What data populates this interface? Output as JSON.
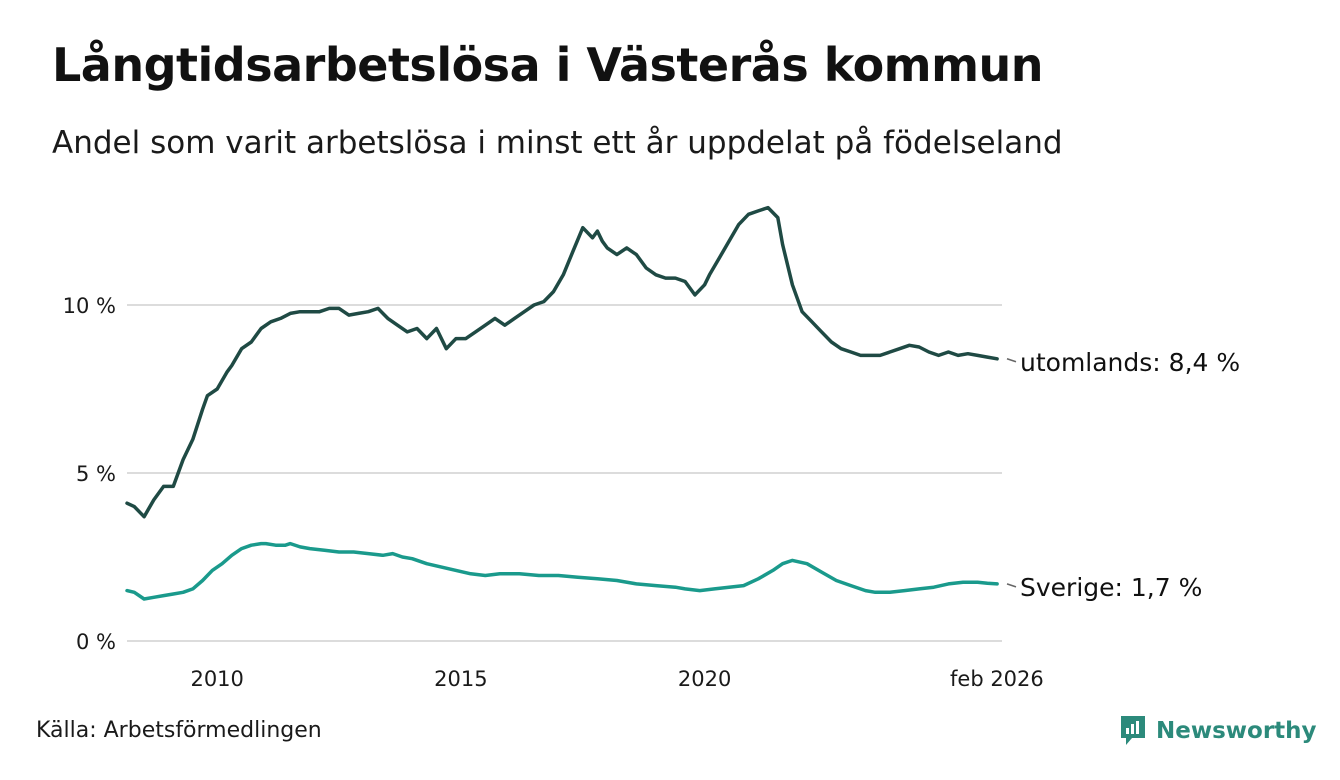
{
  "header": {
    "title": "Långtidsarbetslösa i Västerås kommun",
    "subtitle": "Andel som varit arbetslösa i minst ett år uppdelat på födelseland"
  },
  "footer": {
    "source": "Källa: Arbetsförmedlingen",
    "brand": "Newsworthy"
  },
  "colors": {
    "utomlands": "#1f4a44",
    "sverige": "#1a9a8c",
    "grid": "#dcdcdc",
    "brand": "#2c8a7b"
  },
  "chart_data": {
    "type": "line",
    "title": "Långtidsarbetslösa i Västerås kommun",
    "xlabel": "",
    "ylabel": "",
    "xlim": [
      2008.15,
      2026.1
    ],
    "ylim": [
      0,
      13
    ],
    "yticks": [
      {
        "value": 0,
        "label": "0 %"
      },
      {
        "value": 5,
        "label": "5 %"
      },
      {
        "value": 10,
        "label": "10 %"
      }
    ],
    "xticks": [
      {
        "value": 2010,
        "label": "2010"
      },
      {
        "value": 2015,
        "label": "2015"
      },
      {
        "value": 2020,
        "label": "2020"
      },
      {
        "value": 2025.5,
        "label": "feb 2026"
      }
    ],
    "grid": true,
    "series": [
      {
        "name": "utomlands",
        "label": "utomlands: 8,4 %",
        "x": [
          2008.15,
          2008.3,
          2008.5,
          2008.7,
          2008.9,
          2009.1,
          2009.3,
          2009.5,
          2009.7,
          2009.8,
          2010.0,
          2010.2,
          2010.3,
          2010.5,
          2010.7,
          2010.9,
          2011.1,
          2011.3,
          2011.5,
          2011.7,
          2011.9,
          2012.1,
          2012.3,
          2012.5,
          2012.7,
          2012.9,
          2013.1,
          2013.3,
          2013.5,
          2013.7,
          2013.9,
          2014.1,
          2014.3,
          2014.5,
          2014.7,
          2014.9,
          2015.1,
          2015.3,
          2015.5,
          2015.7,
          2015.9,
          2016.1,
          2016.3,
          2016.5,
          2016.7,
          2016.9,
          2017.1,
          2017.3,
          2017.5,
          2017.7,
          2017.8,
          2017.9,
          2018.0,
          2018.2,
          2018.4,
          2018.6,
          2018.8,
          2019.0,
          2019.2,
          2019.4,
          2019.6,
          2019.8,
          2020.0,
          2020.1,
          2020.3,
          2020.5,
          2020.7,
          2020.9,
          2021.1,
          2021.3,
          2021.5,
          2021.6,
          2021.8,
          2022.0,
          2022.2,
          2022.4,
          2022.6,
          2022.8,
          2023.0,
          2023.2,
          2023.4,
          2023.6,
          2023.8,
          2024.0,
          2024.2,
          2024.4,
          2024.6,
          2024.8,
          2025.0,
          2025.2,
          2025.4,
          2025.6,
          2025.8,
          2026.0
        ],
        "values": [
          4.1,
          4.0,
          3.7,
          4.2,
          4.6,
          4.6,
          5.4,
          6.0,
          6.9,
          7.3,
          7.5,
          8.0,
          8.2,
          8.7,
          8.9,
          9.3,
          9.5,
          9.6,
          9.75,
          9.8,
          9.8,
          9.8,
          9.9,
          9.9,
          9.7,
          9.75,
          9.8,
          9.9,
          9.6,
          9.4,
          9.2,
          9.3,
          9.0,
          9.3,
          8.7,
          9.0,
          9.0,
          9.2,
          9.4,
          9.6,
          9.4,
          9.6,
          9.8,
          10.0,
          10.1,
          10.4,
          10.9,
          11.6,
          12.3,
          12.0,
          12.2,
          11.9,
          11.7,
          11.5,
          11.7,
          11.5,
          11.1,
          10.9,
          10.8,
          10.8,
          10.7,
          10.3,
          10.6,
          10.9,
          11.4,
          11.9,
          12.4,
          12.7,
          12.8,
          12.9,
          12.6,
          11.8,
          10.6,
          9.8,
          9.5,
          9.2,
          8.9,
          8.7,
          8.6,
          8.5,
          8.5,
          8.5,
          8.6,
          8.7,
          8.8,
          8.75,
          8.6,
          8.5,
          8.6,
          8.5,
          8.55,
          8.5,
          8.45,
          8.4
        ]
      },
      {
        "name": "Sverige",
        "label": "Sverige: 1,7 %",
        "x": [
          2008.15,
          2008.3,
          2008.5,
          2008.7,
          2008.9,
          2009.1,
          2009.3,
          2009.5,
          2009.7,
          2009.9,
          2010.1,
          2010.3,
          2010.5,
          2010.7,
          2010.9,
          2011.0,
          2011.2,
          2011.4,
          2011.5,
          2011.7,
          2011.9,
          2012.2,
          2012.5,
          2012.8,
          2013.1,
          2013.4,
          2013.6,
          2013.8,
          2014.0,
          2014.3,
          2014.6,
          2014.9,
          2015.2,
          2015.5,
          2015.8,
          2016.2,
          2016.6,
          2017.0,
          2017.4,
          2017.8,
          2018.2,
          2018.6,
          2019.0,
          2019.4,
          2019.6,
          2019.9,
          2020.2,
          2020.5,
          2020.8,
          2021.1,
          2021.4,
          2021.6,
          2021.8,
          2022.1,
          2022.4,
          2022.7,
          2023.0,
          2023.3,
          2023.5,
          2023.8,
          2024.1,
          2024.4,
          2024.7,
          2025.0,
          2025.3,
          2025.6,
          2025.8,
          2026.0
        ],
        "values": [
          1.5,
          1.45,
          1.25,
          1.3,
          1.35,
          1.4,
          1.45,
          1.55,
          1.8,
          2.1,
          2.3,
          2.55,
          2.75,
          2.85,
          2.9,
          2.9,
          2.85,
          2.85,
          2.9,
          2.8,
          2.75,
          2.7,
          2.65,
          2.65,
          2.6,
          2.55,
          2.6,
          2.5,
          2.45,
          2.3,
          2.2,
          2.1,
          2.0,
          1.95,
          2.0,
          2.0,
          1.95,
          1.95,
          1.9,
          1.85,
          1.8,
          1.7,
          1.65,
          1.6,
          1.55,
          1.5,
          1.55,
          1.6,
          1.65,
          1.85,
          2.1,
          2.3,
          2.4,
          2.3,
          2.05,
          1.8,
          1.65,
          1.5,
          1.45,
          1.45,
          1.5,
          1.55,
          1.6,
          1.7,
          1.75,
          1.75,
          1.72,
          1.7
        ]
      }
    ]
  }
}
